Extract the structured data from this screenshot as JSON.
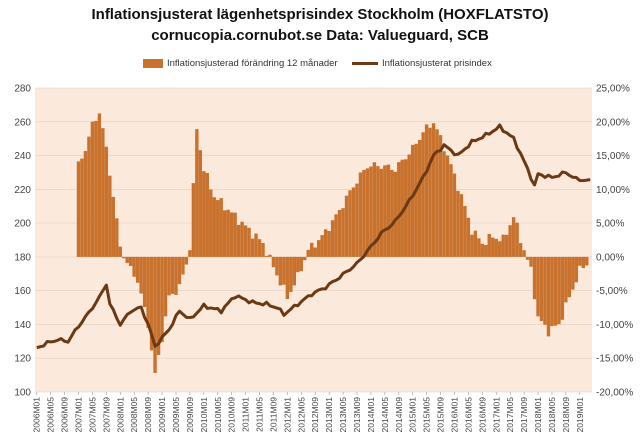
{
  "chart_data": {
    "type": "bar+line",
    "title": "Inflationsjusterat lägenhetsprisindex Stockholm (HOXFLATSTO)",
    "subtitle": "cornucopia.cornubot.se Data: Valueguard, SCB",
    "legend_position": "top",
    "colors": {
      "bars": "#C8722E",
      "line": "#6B3A14",
      "plot_background": "#FBE9DC"
    },
    "left_axis": {
      "ylim": [
        100,
        280
      ],
      "ticks": [
        "100",
        "120",
        "140",
        "160",
        "180",
        "200",
        "220",
        "240",
        "260",
        "280"
      ]
    },
    "right_axis": {
      "ylim": [
        -20,
        25
      ],
      "ticks": [
        "-20,00%",
        "-15,00%",
        "-10,00%",
        "-5,00%",
        "0,00%",
        "5,00%",
        "10,00%",
        "15,00%",
        "20,00%",
        "25,00%"
      ]
    },
    "x_tick_labels": [
      "2006M01",
      "2006M05",
      "2006M09",
      "2007M01",
      "2007M05",
      "2007M09",
      "2008M01",
      "2008M05",
      "2008M09",
      "2009M01",
      "2009M05",
      "2009M09",
      "2010M01",
      "2010M05",
      "2010M09",
      "2011M01",
      "2011M05",
      "2011M09",
      "2012M01",
      "2012M05",
      "2012M09",
      "2013M01",
      "2013M05",
      "2013M09",
      "2014M01",
      "2014M05",
      "2014M09",
      "2015M01",
      "2015M05",
      "2015M09",
      "2016M01",
      "2016M05",
      "2016M09",
      "2017M01",
      "2017M05",
      "2017M09",
      "2018M01",
      "2018M05",
      "2018M09",
      "2019M01"
    ],
    "bar_keyframes": [
      {
        "x": "2007M01",
        "y": 13.5
      },
      {
        "x": "2007M03",
        "y": 16
      },
      {
        "x": "2007M05",
        "y": 19.5
      },
      {
        "x": "2007M07",
        "y": 21.5
      },
      {
        "x": "2007M09",
        "y": 16
      },
      {
        "x": "2007M11",
        "y": 9
      },
      {
        "x": "2008M01",
        "y": 1.5
      },
      {
        "x": "2008M03",
        "y": -1
      },
      {
        "x": "2008M06",
        "y": -3.5
      },
      {
        "x": "2008M09",
        "y": -10
      },
      {
        "x": "2008M11",
        "y": -17.5
      },
      {
        "x": "2009M01",
        "y": -12
      },
      {
        "x": "2009M03",
        "y": -6
      },
      {
        "x": "2009M06",
        "y": -4.5
      },
      {
        "x": "2009M08",
        "y": -1
      },
      {
        "x": "2009M09",
        "y": 1.5
      },
      {
        "x": "2009M11",
        "y": 19
      },
      {
        "x": "2010M01",
        "y": 13
      },
      {
        "x": "2010M04",
        "y": 9
      },
      {
        "x": "2010M08",
        "y": 7
      },
      {
        "x": "2010M12",
        "y": 5
      },
      {
        "x": "2011M06",
        "y": 2
      },
      {
        "x": "2011M09",
        "y": -1.5
      },
      {
        "x": "2012M01",
        "y": -6
      },
      {
        "x": "2012M04",
        "y": -3
      },
      {
        "x": "2012M07",
        "y": 1
      },
      {
        "x": "2012M11",
        "y": 3
      },
      {
        "x": "2013M03",
        "y": 6
      },
      {
        "x": "2013M08",
        "y": 10.5
      },
      {
        "x": "2013M12",
        "y": 13.5
      },
      {
        "x": "2014M04",
        "y": 13.5
      },
      {
        "x": "2014M08",
        "y": 13
      },
      {
        "x": "2015M01",
        "y": 16
      },
      {
        "x": "2015M04",
        "y": 18.5
      },
      {
        "x": "2015M07",
        "y": 20
      },
      {
        "x": "2015M11",
        "y": 15
      },
      {
        "x": "2016M03",
        "y": 9
      },
      {
        "x": "2016M06",
        "y": 4
      },
      {
        "x": "2016M09",
        "y": 2
      },
      {
        "x": "2016M12",
        "y": 3
      },
      {
        "x": "2017M03",
        "y": 2.5
      },
      {
        "x": "2017M06",
        "y": 6
      },
      {
        "x": "2017M09",
        "y": 1
      },
      {
        "x": "2017M11",
        "y": -2
      },
      {
        "x": "2018M01",
        "y": -9
      },
      {
        "x": "2018M04",
        "y": -11
      },
      {
        "x": "2018M07",
        "y": -10
      },
      {
        "x": "2018M10",
        "y": -6
      },
      {
        "x": "2019M01",
        "y": -2
      },
      {
        "x": "2019M03",
        "y": -1
      }
    ],
    "line_keyframes": [
      {
        "x": "2006M01",
        "y": 126
      },
      {
        "x": "2006M04",
        "y": 129
      },
      {
        "x": "2006M07",
        "y": 131
      },
      {
        "x": "2006M10",
        "y": 130
      },
      {
        "x": "2007M01",
        "y": 139
      },
      {
        "x": "2007M04",
        "y": 147
      },
      {
        "x": "2007M07",
        "y": 156
      },
      {
        "x": "2007M09",
        "y": 164
      },
      {
        "x": "2007M10",
        "y": 152
      },
      {
        "x": "2008M01",
        "y": 140
      },
      {
        "x": "2008M04",
        "y": 148
      },
      {
        "x": "2008M07",
        "y": 150
      },
      {
        "x": "2008M09",
        "y": 140
      },
      {
        "x": "2008M11",
        "y": 127
      },
      {
        "x": "2009M03",
        "y": 137
      },
      {
        "x": "2009M06",
        "y": 148
      },
      {
        "x": "2009M09",
        "y": 143
      },
      {
        "x": "2010M01",
        "y": 151
      },
      {
        "x": "2010M06",
        "y": 148
      },
      {
        "x": "2010M10",
        "y": 157
      },
      {
        "x": "2011M03",
        "y": 153
      },
      {
        "x": "2011M07",
        "y": 152
      },
      {
        "x": "2011M10",
        "y": 150
      },
      {
        "x": "2011M12",
        "y": 146
      },
      {
        "x": "2012M04",
        "y": 152
      },
      {
        "x": "2012M08",
        "y": 158
      },
      {
        "x": "2012M12",
        "y": 162
      },
      {
        "x": "2013M04",
        "y": 168
      },
      {
        "x": "2013M09",
        "y": 176
      },
      {
        "x": "2014M01",
        "y": 186
      },
      {
        "x": "2014M04",
        "y": 194
      },
      {
        "x": "2014M08",
        "y": 201
      },
      {
        "x": "2014M12",
        "y": 213
      },
      {
        "x": "2015M04",
        "y": 227
      },
      {
        "x": "2015M07",
        "y": 240
      },
      {
        "x": "2015M10",
        "y": 246
      },
      {
        "x": "2016M02",
        "y": 240
      },
      {
        "x": "2016M06",
        "y": 248
      },
      {
        "x": "2016M10",
        "y": 252
      },
      {
        "x": "2017M02",
        "y": 257
      },
      {
        "x": "2017M06",
        "y": 250
      },
      {
        "x": "2017M10",
        "y": 232
      },
      {
        "x": "2017M12",
        "y": 222
      },
      {
        "x": "2018M01",
        "y": 229
      },
      {
        "x": "2018M05",
        "y": 227
      },
      {
        "x": "2018M09",
        "y": 230
      },
      {
        "x": "2018M12",
        "y": 226
      },
      {
        "x": "2019M04",
        "y": 225
      }
    ],
    "series": [
      {
        "name": "Inflationsjusterad förändring 12 månader",
        "kind": "bar",
        "axis": "right",
        "color": "#C8722E"
      },
      {
        "name": "Inflationsjusterat prisindex",
        "kind": "line",
        "axis": "left",
        "color": "#6B3A14"
      }
    ]
  }
}
